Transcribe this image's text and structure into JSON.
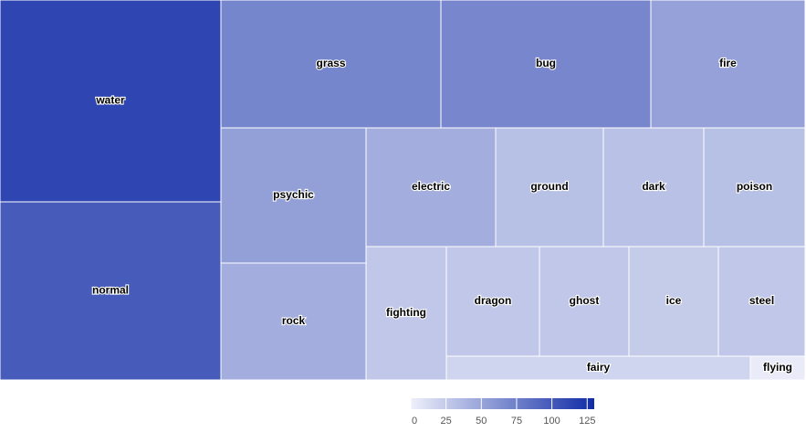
{
  "chart_data": {
    "type": "treemap",
    "color_scale": {
      "min": 0,
      "max": 130,
      "low_color": "#eef0fa",
      "high_color": "#102ba6",
      "ticks": [
        0,
        25,
        50,
        75,
        100,
        125
      ]
    },
    "cells": [
      {
        "name": "water",
        "value": 112
      },
      {
        "name": "normal",
        "value": 98
      },
      {
        "name": "grass",
        "value": 70
      },
      {
        "name": "bug",
        "value": 69
      },
      {
        "name": "fire",
        "value": 52
      },
      {
        "name": "psychic",
        "value": 53
      },
      {
        "name": "rock",
        "value": 44
      },
      {
        "name": "electric",
        "value": 44
      },
      {
        "name": "ground",
        "value": 32
      },
      {
        "name": "dark",
        "value": 31
      },
      {
        "name": "poison",
        "value": 32
      },
      {
        "name": "fighting",
        "value": 27
      },
      {
        "name": "dragon",
        "value": 27
      },
      {
        "name": "ghost",
        "value": 27
      },
      {
        "name": "ice",
        "value": 24
      },
      {
        "name": "steel",
        "value": 27
      },
      {
        "name": "fairy",
        "value": 18
      },
      {
        "name": "flying",
        "value": 3
      }
    ]
  }
}
